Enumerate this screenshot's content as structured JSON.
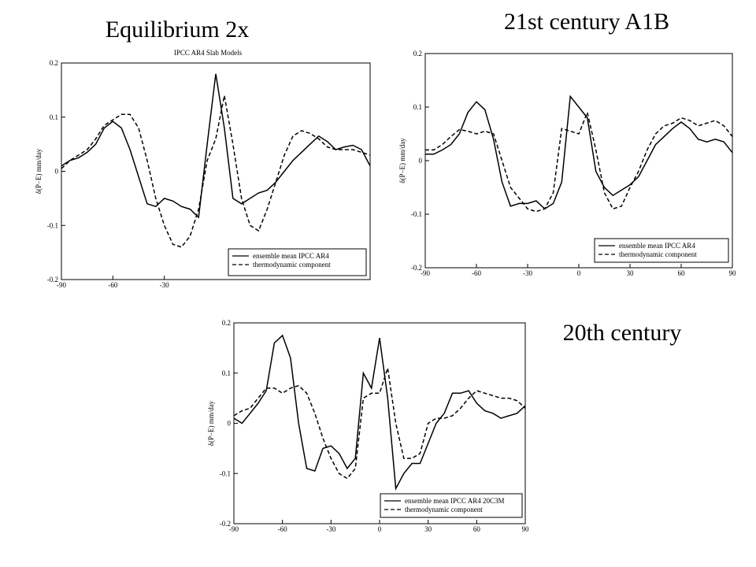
{
  "chart_data": [
    {
      "type": "line",
      "heading": "Equilibrium  2x",
      "title": "IPCC AR4 Slab Models",
      "ylabel": "δ(P−E)  mm/day",
      "x": [
        -90,
        -85,
        -80,
        -75,
        -70,
        -65,
        -60,
        -55,
        -50,
        -45,
        -40,
        -35,
        -30,
        -25,
        -20,
        -15,
        -10,
        -5,
        0,
        5,
        10,
        15,
        20,
        25,
        30,
        35,
        40,
        45,
        50,
        55,
        60,
        65,
        70,
        75,
        80,
        85,
        90
      ],
      "series": [
        {
          "name": "ensemble mean IPCC AR4",
          "color": "#000000",
          "linestyle": "solid",
          "values": [
            0.01,
            0.02,
            0.025,
            0.035,
            0.05,
            0.08,
            0.092,
            0.08,
            0.04,
            -0.01,
            -0.06,
            -0.065,
            -0.05,
            -0.055,
            -0.065,
            -0.07,
            -0.085,
            0.05,
            0.18,
            0.08,
            -0.05,
            -0.06,
            -0.05,
            -0.04,
            -0.035,
            -0.02,
            0.0,
            0.02,
            0.035,
            0.05,
            0.065,
            0.055,
            0.04,
            0.045,
            0.048,
            0.04,
            0.01
          ]
        },
        {
          "name": "thermodynamic component",
          "color": "#000000",
          "linestyle": "dashed",
          "values": [
            0.005,
            0.02,
            0.03,
            0.04,
            0.06,
            0.085,
            0.095,
            0.105,
            0.105,
            0.08,
            0.02,
            -0.05,
            -0.1,
            -0.135,
            -0.14,
            -0.12,
            -0.07,
            0.02,
            0.06,
            0.14,
            0.05,
            -0.05,
            -0.1,
            -0.11,
            -0.07,
            -0.02,
            0.03,
            0.065,
            0.075,
            0.07,
            0.06,
            0.045,
            0.04,
            0.04,
            0.04,
            0.035,
            0.03
          ]
        }
      ],
      "xlim": [
        -90,
        90
      ],
      "ylim": [
        -0.2,
        0.2
      ],
      "xticks": [
        -90,
        -60,
        -30
      ],
      "yticks": [
        -0.2,
        -0.1,
        0,
        0.1,
        0.2
      ],
      "legend": "lower right"
    },
    {
      "type": "line",
      "heading": "21st century A1B",
      "ylabel": "δ(P−E)  mm/day",
      "x": [
        -90,
        -85,
        -80,
        -75,
        -70,
        -65,
        -60,
        -55,
        -50,
        -45,
        -40,
        -35,
        -30,
        -25,
        -20,
        -15,
        -10,
        -5,
        0,
        5,
        10,
        15,
        20,
        25,
        30,
        35,
        40,
        45,
        50,
        55,
        60,
        65,
        70,
        75,
        80,
        85,
        90
      ],
      "series": [
        {
          "name": "ensemble mean IPCC AR4",
          "color": "#000000",
          "linestyle": "solid",
          "values": [
            0.012,
            0.012,
            0.02,
            0.03,
            0.05,
            0.09,
            0.11,
            0.095,
            0.04,
            -0.04,
            -0.085,
            -0.08,
            -0.08,
            -0.075,
            -0.09,
            -0.08,
            -0.04,
            0.12,
            0.1,
            0.08,
            -0.02,
            -0.05,
            -0.065,
            -0.055,
            -0.045,
            -0.03,
            0.0,
            0.03,
            0.045,
            0.06,
            0.072,
            0.06,
            0.04,
            0.035,
            0.04,
            0.035,
            0.015
          ]
        },
        {
          "name": "thermodynamic component",
          "color": "#000000",
          "linestyle": "dashed",
          "values": [
            0.02,
            0.02,
            0.03,
            0.045,
            0.058,
            0.055,
            0.05,
            0.055,
            0.05,
            0.0,
            -0.05,
            -0.07,
            -0.09,
            -0.095,
            -0.09,
            -0.06,
            0.06,
            0.055,
            0.05,
            0.09,
            0.02,
            -0.06,
            -0.09,
            -0.085,
            -0.05,
            -0.02,
            0.02,
            0.05,
            0.065,
            0.07,
            0.08,
            0.075,
            0.065,
            0.07,
            0.075,
            0.065,
            0.045
          ]
        }
      ],
      "xlim": [
        -90,
        90
      ],
      "ylim": [
        -0.2,
        0.2
      ],
      "xticks": [
        -90,
        -60,
        -30,
        0,
        30,
        60,
        90
      ],
      "yticks": [
        -0.2,
        -0.1,
        0,
        0.1,
        0.2
      ],
      "legend": "lower right"
    },
    {
      "type": "line",
      "heading": "20th century",
      "ylabel": "δ(P−E)  mm/day",
      "x": [
        -90,
        -85,
        -80,
        -75,
        -70,
        -65,
        -60,
        -55,
        -50,
        -45,
        -40,
        -35,
        -30,
        -25,
        -20,
        -15,
        -10,
        -5,
        0,
        5,
        10,
        15,
        20,
        25,
        30,
        35,
        40,
        45,
        50,
        55,
        60,
        65,
        70,
        75,
        80,
        85,
        90
      ],
      "series": [
        {
          "name": "ensemble mean IPCC AR4 20C3M",
          "color": "#000000",
          "linestyle": "solid",
          "values": [
            0.01,
            0.0,
            0.02,
            0.04,
            0.065,
            0.16,
            0.175,
            0.13,
            0.0,
            -0.09,
            -0.095,
            -0.05,
            -0.045,
            -0.06,
            -0.09,
            -0.07,
            0.1,
            0.07,
            0.17,
            0.05,
            -0.13,
            -0.1,
            -0.08,
            -0.08,
            -0.04,
            0.0,
            0.02,
            0.06,
            0.06,
            0.065,
            0.04,
            0.025,
            0.02,
            0.01,
            0.015,
            0.02,
            0.035
          ]
        },
        {
          "name": "thermodynamic component",
          "color": "#000000",
          "linestyle": "dashed",
          "values": [
            0.015,
            0.025,
            0.03,
            0.05,
            0.07,
            0.07,
            0.06,
            0.07,
            0.075,
            0.06,
            0.02,
            -0.03,
            -0.07,
            -0.1,
            -0.11,
            -0.09,
            0.05,
            0.06,
            0.06,
            0.11,
            0.0,
            -0.07,
            -0.07,
            -0.06,
            0.0,
            0.01,
            0.01,
            0.015,
            0.03,
            0.05,
            0.065,
            0.06,
            0.055,
            0.05,
            0.05,
            0.045,
            0.03
          ]
        }
      ],
      "xlim": [
        -90,
        90
      ],
      "ylim": [
        -0.2,
        0.2
      ],
      "xticks": [
        -90,
        -60,
        -30,
        0,
        30,
        60,
        90
      ],
      "yticks": [
        -0.2,
        -0.1,
        0,
        0.1,
        0.2
      ],
      "legend": "lower right"
    }
  ]
}
